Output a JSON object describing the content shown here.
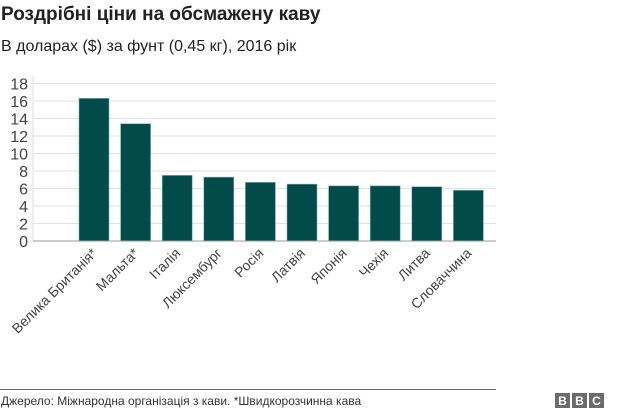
{
  "chart_data": {
    "type": "bar",
    "title": "Роздрібні ціни на обсмажену каву",
    "subtitle": "В доларах ($) за фунт (0,45 кг), 2016 рік",
    "xlabel": "",
    "ylabel": "",
    "categories": [
      "Велика Британія*",
      "Мальта*",
      "Італія",
      "Люксембург",
      "Росія",
      "Латвія",
      "Японія",
      "Чехія",
      "Литва",
      "Словаччина"
    ],
    "values": [
      16.3,
      13.4,
      7.5,
      7.3,
      6.7,
      6.5,
      6.3,
      6.3,
      6.2,
      5.8
    ],
    "ylim": [
      0,
      18
    ],
    "yticks": [
      0,
      2,
      4,
      6,
      8,
      10,
      12,
      14,
      16,
      18
    ],
    "grid": true,
    "bar_color": "#034a4a"
  },
  "footer": {
    "source": "Джерело: Міжнародна організація з кави. *Швидкорозчинна кава",
    "logo": "BBC"
  }
}
